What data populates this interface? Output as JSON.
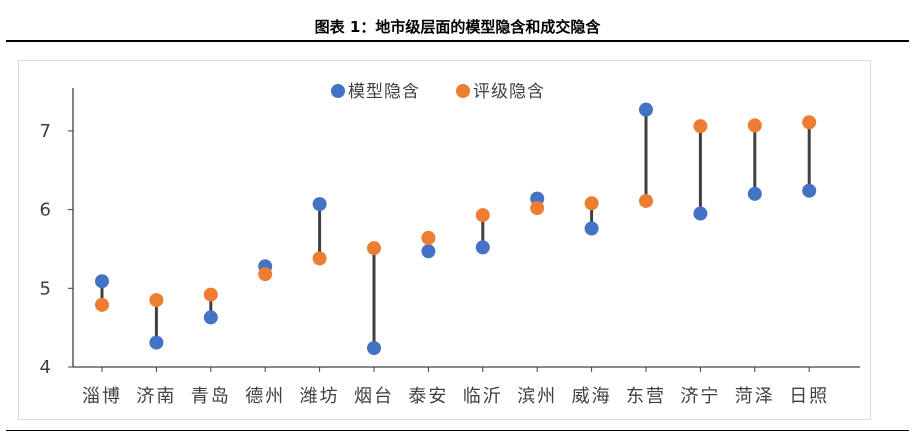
{
  "header": {
    "title": "图表 1：地市级层面的模型隐含和成交隐含"
  },
  "chart_data": {
    "type": "scatter",
    "style": "dumbbell",
    "categories": [
      "淄博",
      "济南",
      "青岛",
      "德州",
      "潍坊",
      "烟台",
      "泰安",
      "临沂",
      "滨州",
      "威海",
      "东营",
      "济宁",
      "菏泽",
      "日照"
    ],
    "series": [
      {
        "name": "模型隐含",
        "color": "#4472C4",
        "values": [
          5.09,
          4.31,
          4.63,
          5.28,
          6.07,
          4.24,
          5.47,
          5.52,
          6.14,
          5.76,
          7.27,
          5.95,
          6.2,
          6.24
        ]
      },
      {
        "name": "评级隐含",
        "color": "#ED7D31",
        "values": [
          4.79,
          4.85,
          4.92,
          5.18,
          5.38,
          5.51,
          5.64,
          5.93,
          6.02,
          6.08,
          6.11,
          7.06,
          7.07,
          7.11
        ]
      }
    ],
    "ylim": [
      4,
      7.5
    ],
    "yticks": [
      "4",
      "5",
      "6",
      "7"
    ],
    "connector_color": "#404040",
    "legend_position": "top-center",
    "grid": false
  }
}
